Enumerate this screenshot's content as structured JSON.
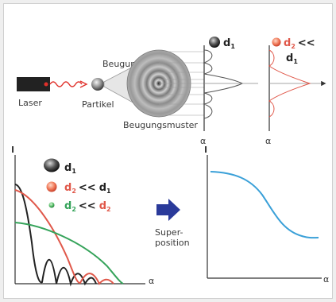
{
  "labels": {
    "laser": "Laser",
    "particle": "Partikel",
    "diffraction": "Beugung",
    "diffraction_pattern": "Beugungsmuster",
    "superposition_line1": "Super-",
    "superposition_line2": "position"
  },
  "top_profiles": {
    "left_label_d": "d",
    "left_label_sub": "1",
    "right_label_d": "d",
    "right_label_sub": "2",
    "right_label_rel": "<<",
    "right_label_d2": "d",
    "right_label_d2_sub": "1",
    "axis_label": "α"
  },
  "bottom_left": {
    "y_axis_label": "I",
    "x_axis_label": "α",
    "legend": [
      {
        "text": "d",
        "sub": "1",
        "rel": "",
        "text2": "",
        "sub2": ""
      },
      {
        "text": "d",
        "sub": "2",
        "rel": "<<",
        "text2": "d",
        "sub2": "1"
      },
      {
        "text": "d",
        "sub": "2",
        "rel": "<<",
        "text2": "d",
        "sub2": "2"
      }
    ]
  },
  "bottom_right": {
    "y_axis_label": "I",
    "x_axis_label": "α"
  },
  "colors": {
    "laser_beam": "#e0302a",
    "curve_black": "#222222",
    "curve_red": "#e0584a",
    "curve_green": "#35a35a",
    "curve_blue": "#3aa0d8",
    "arrow": "#2a3a9a"
  }
}
